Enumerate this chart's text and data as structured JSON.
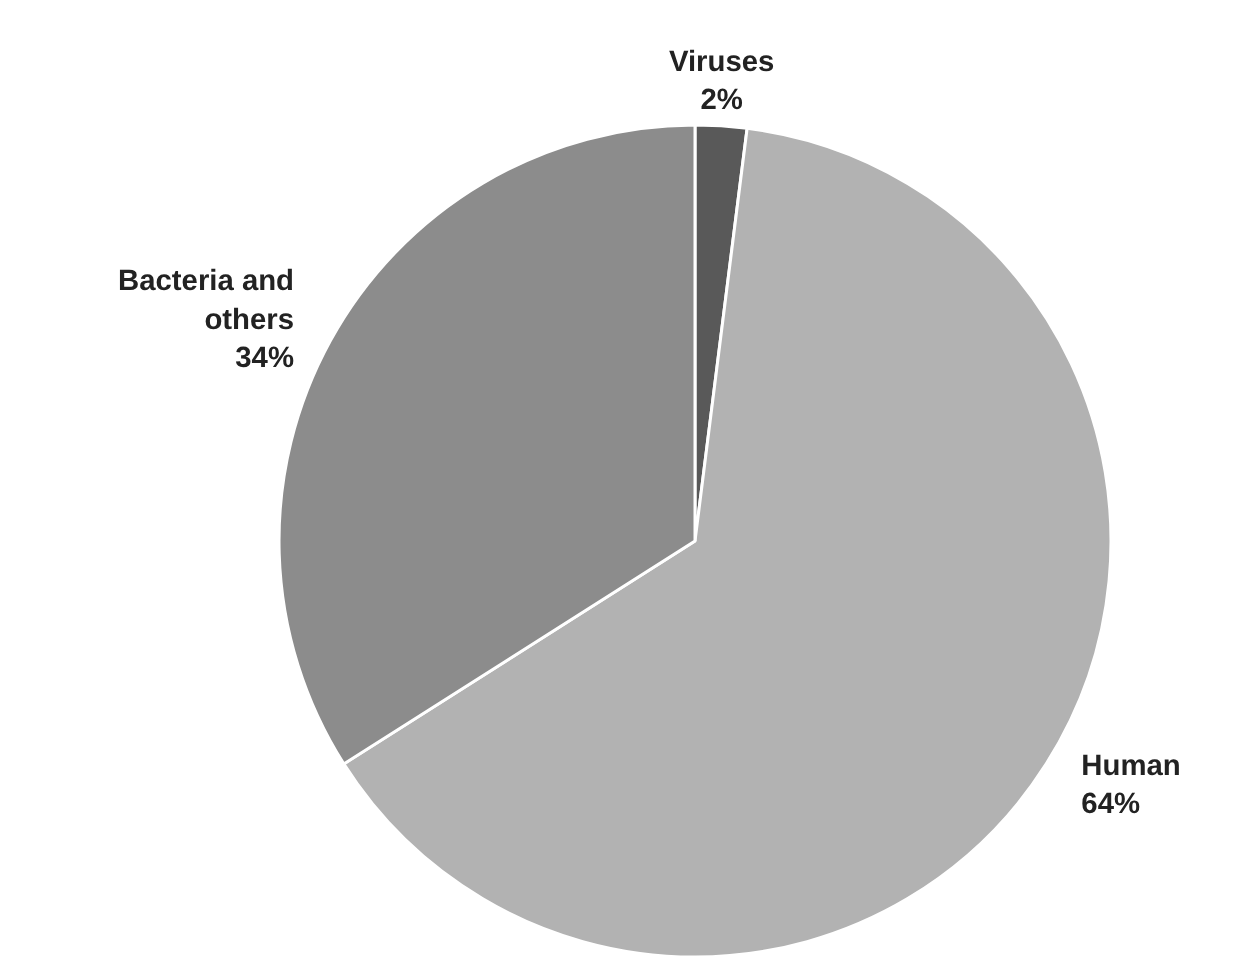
{
  "chart_data": {
    "type": "pie",
    "categories": [
      "Viruses",
      "Human",
      "Bacteria and others"
    ],
    "values": [
      2,
      64,
      34
    ],
    "value_labels": [
      "2%",
      "64%",
      "34%"
    ],
    "colors": [
      "#595959",
      "#b2b2b2",
      "#8c8c8c"
    ]
  }
}
